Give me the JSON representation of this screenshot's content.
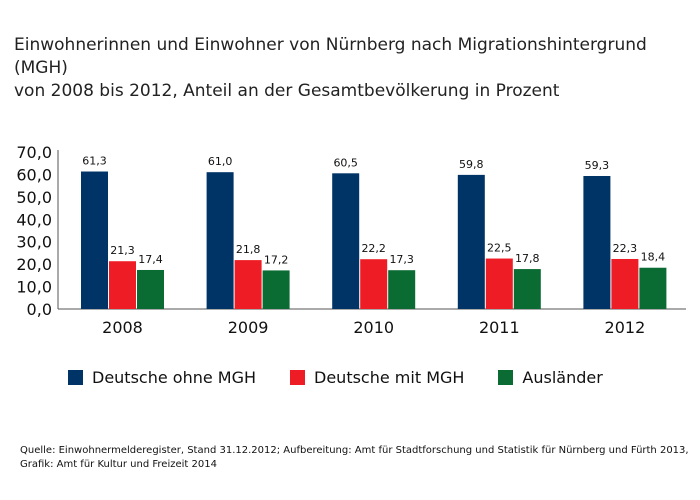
{
  "title_line1": "Einwohnerinnen und Einwohner von Nürnberg nach Migrationshintergrund (MGH)",
  "title_line2": "von 2008 bis 2012, Anteil an der Gesamtbevölkerung in Prozent",
  "source_line1": "Quelle: Einwohnermelderegister, Stand 31.12.2012; Aufbereitung: Amt für Stadtforschung und Statistik für Nürnberg und Fürth 2013,",
  "source_line2": "Grafik: Amt für Kultur und Freizeit 2014",
  "chart_data": {
    "type": "bar",
    "title": "Einwohnerinnen und Einwohner von Nürnberg nach Migrationshintergrund (MGH) von 2008 bis 2012, Anteil an der Gesamtbevölkerung in Prozent",
    "categories": [
      "2008",
      "2009",
      "2010",
      "2011",
      "2012"
    ],
    "series": [
      {
        "name": "Deutsche ohne MGH",
        "color": "#003466",
        "values": [
          61.3,
          61.0,
          60.5,
          59.8,
          59.3
        ],
        "labels": [
          "61,3",
          "61,0",
          "60,5",
          "59,8",
          "59,3"
        ]
      },
      {
        "name": "Deutsche mit MGH",
        "color": "#ee1c25",
        "values": [
          21.3,
          21.8,
          22.2,
          22.5,
          22.3
        ],
        "labels": [
          "21,3",
          "21,8",
          "22,2",
          "22,5",
          "22,3"
        ]
      },
      {
        "name": "Ausländer",
        "color": "#0a6b33",
        "values": [
          17.4,
          17.2,
          17.3,
          17.8,
          18.4
        ],
        "labels": [
          "17,4",
          "17,2",
          "17,3",
          "17,8",
          "18,4"
        ]
      }
    ],
    "ylim": [
      0,
      70
    ],
    "yticks": [
      "0,0",
      "10,0",
      "20,0",
      "30,0",
      "40,0",
      "50,0",
      "60,0",
      "70,0"
    ],
    "xlabel": "",
    "ylabel": "",
    "grid": false,
    "legend_position": "bottom"
  }
}
